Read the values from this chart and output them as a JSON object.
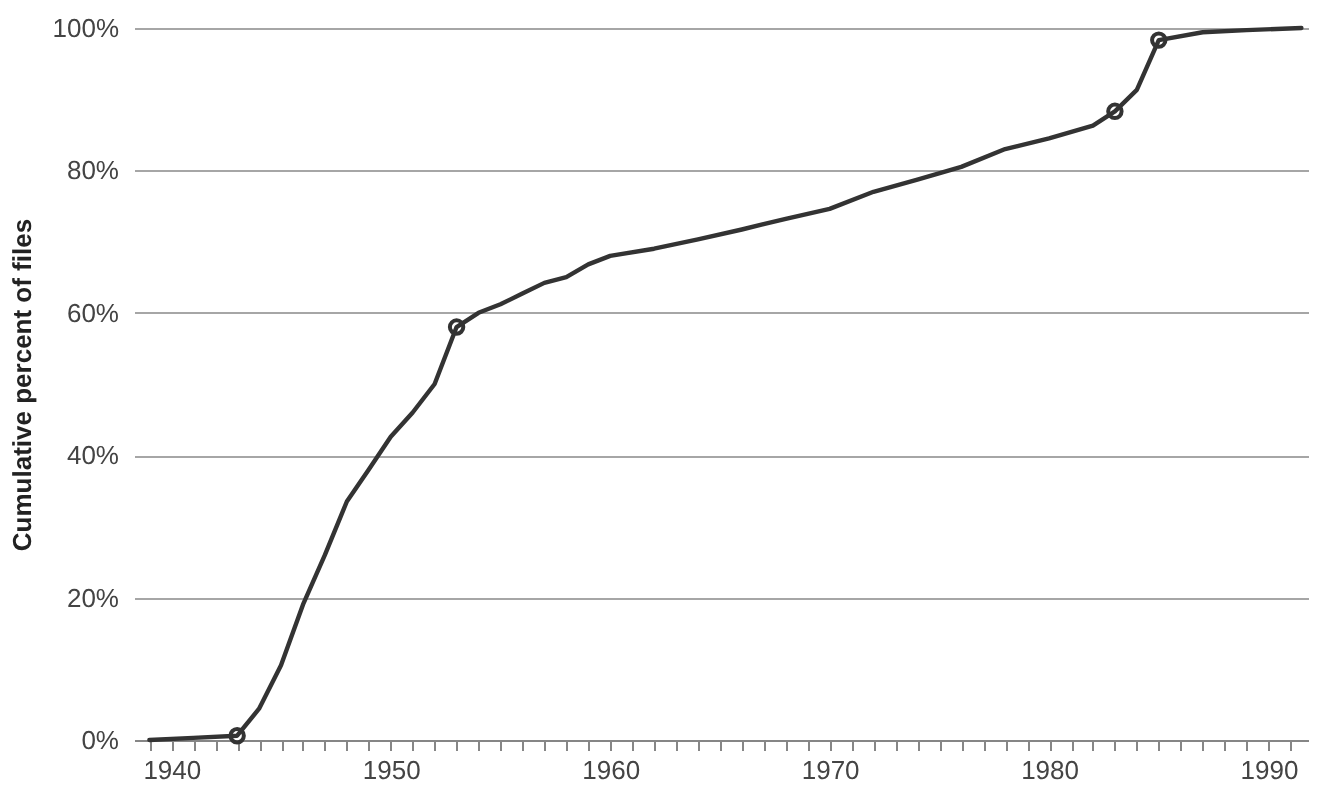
{
  "chart_data": {
    "type": "line",
    "ylabel": "Cumulative percent of files",
    "grid": "y",
    "xlim": [
      1938.3,
      1991.8
    ],
    "ylim": [
      0,
      100
    ],
    "xticks": [
      {
        "value": 1939,
        "label": null
      },
      1940,
      {
        "value": 1941,
        "label": null
      },
      {
        "value": 1942,
        "label": null
      },
      {
        "value": 1943,
        "label": null
      },
      {
        "value": 1944,
        "label": null
      },
      {
        "value": 1945,
        "label": null
      },
      {
        "value": 1946,
        "label": null
      },
      {
        "value": 1947,
        "label": null
      },
      {
        "value": 1948,
        "label": null
      },
      {
        "value": 1949,
        "label": null
      },
      1950,
      {
        "value": 1951,
        "label": null
      },
      {
        "value": 1952,
        "label": null
      },
      {
        "value": 1953,
        "label": null
      },
      {
        "value": 1954,
        "label": null
      },
      {
        "value": 1955,
        "label": null
      },
      {
        "value": 1956,
        "label": null
      },
      {
        "value": 1957,
        "label": null
      },
      {
        "value": 1958,
        "label": null
      },
      {
        "value": 1959,
        "label": null
      },
      1960,
      {
        "value": 1961,
        "label": null
      },
      {
        "value": 1962,
        "label": null
      },
      {
        "value": 1963,
        "label": null
      },
      {
        "value": 1964,
        "label": null
      },
      {
        "value": 1965,
        "label": null
      },
      {
        "value": 1966,
        "label": null
      },
      {
        "value": 1967,
        "label": null
      },
      {
        "value": 1968,
        "label": null
      },
      {
        "value": 1969,
        "label": null
      },
      1970,
      {
        "value": 1971,
        "label": null
      },
      {
        "value": 1972,
        "label": null
      },
      {
        "value": 1973,
        "label": null
      },
      {
        "value": 1974,
        "label": null
      },
      {
        "value": 1975,
        "label": null
      },
      {
        "value": 1976,
        "label": null
      },
      {
        "value": 1977,
        "label": null
      },
      {
        "value": 1978,
        "label": null
      },
      {
        "value": 1979,
        "label": null
      },
      1980,
      {
        "value": 1981,
        "label": null
      },
      {
        "value": 1982,
        "label": null
      },
      {
        "value": 1983,
        "label": null
      },
      {
        "value": 1984,
        "label": null
      },
      {
        "value": 1985,
        "label": null
      },
      {
        "value": 1986,
        "label": null
      },
      {
        "value": 1987,
        "label": null
      },
      {
        "value": 1988,
        "label": null
      },
      {
        "value": 1989,
        "label": null
      },
      1990,
      {
        "value": 1991,
        "label": null
      }
    ],
    "yticks": [
      {
        "value": 0,
        "label": "0%"
      },
      {
        "value": 20,
        "label": "20%"
      },
      {
        "value": 40,
        "label": "40%"
      },
      {
        "value": 60,
        "label": "60%"
      },
      {
        "value": 80,
        "label": "80%"
      },
      {
        "value": 100,
        "label": "100%"
      }
    ],
    "series": [
      {
        "marker": "none",
        "line_style": "solid",
        "color": "#333333",
        "x": [
          1939,
          1941,
          1943,
          1944,
          1945,
          1946,
          1947,
          1948,
          1949,
          1950,
          1951,
          1952,
          1953,
          1954,
          1955,
          1956,
          1957,
          1958,
          1959,
          1960,
          1962,
          1964,
          1966,
          1968,
          1970,
          1972,
          1974,
          1976,
          1978,
          1980,
          1982,
          1983,
          1984,
          1985,
          1987,
          1989,
          1991.5
        ],
        "values": [
          0,
          0.3,
          0.6,
          4.4,
          10.5,
          19,
          26,
          33.5,
          38,
          42.6,
          46,
          50,
          58,
          60,
          61.2,
          62.7,
          64.2,
          65,
          66.8,
          68,
          69,
          70.3,
          71.7,
          73.2,
          74.6,
          77,
          78.7,
          80.5,
          83,
          84.5,
          86.3,
          88.3,
          91.3,
          98.3,
          99.4,
          99.7,
          100
        ]
      },
      {
        "type": "scatter",
        "marker": "circle",
        "color": "#333333",
        "x": [
          1943,
          1953,
          1983,
          1985
        ],
        "values": [
          0.6,
          58,
          88.3,
          98.3
        ]
      }
    ]
  }
}
